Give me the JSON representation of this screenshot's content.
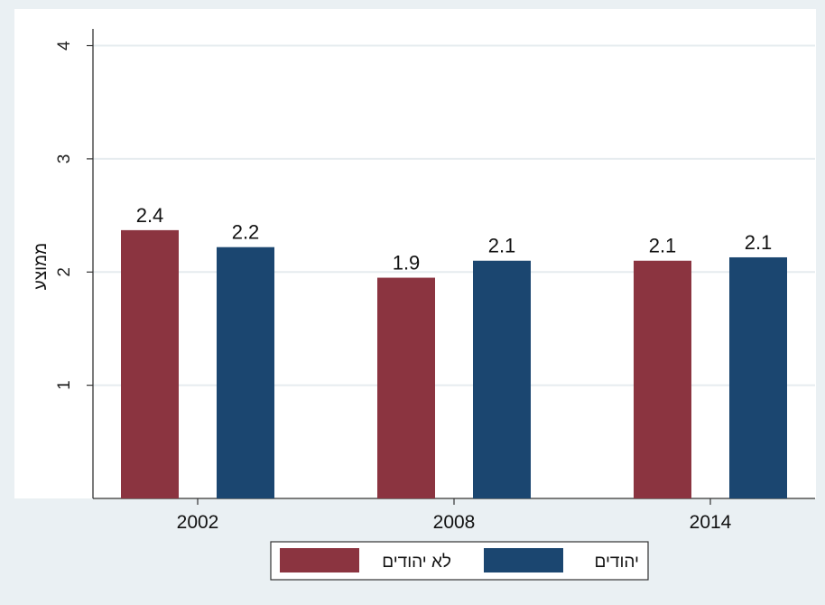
{
  "chart_data": {
    "type": "bar",
    "categories": [
      "2002",
      "2008",
      "2014"
    ],
    "series": [
      {
        "name": "לא יהודים",
        "values": [
          2.37,
          1.95,
          2.1
        ],
        "labels": [
          "2.4",
          "1.9",
          "2.1"
        ],
        "color": "#8b3440"
      },
      {
        "name": "יהודים",
        "values": [
          2.22,
          2.1,
          2.13
        ],
        "labels": [
          "2.2",
          "2.1",
          "2.1"
        ],
        "color": "#1b4670"
      }
    ],
    "ylabel": "ממוצע",
    "xlabel": "",
    "title": "",
    "ylim": [
      0,
      4.1
    ],
    "yticks": [
      1,
      2,
      3,
      4
    ],
    "grid": true,
    "legend_position": "bottom"
  },
  "colors": {
    "plot_background": "#ffffff",
    "page_background": "#eaf0f3",
    "gridline": "#e6ecef"
  }
}
